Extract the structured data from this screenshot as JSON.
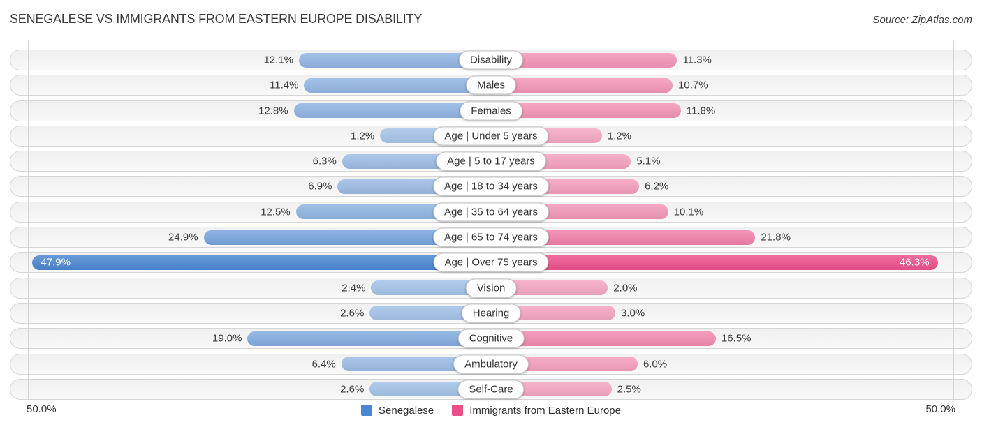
{
  "title": "SENEGALESE VS IMMIGRANTS FROM EASTERN EUROPE DISABILITY",
  "source": "Source: ZipAtlas.com",
  "axis": {
    "left_label": "50.0%",
    "right_label": "50.0%"
  },
  "legend": {
    "items": [
      {
        "label": "Senegalese",
        "color": "#4A86D2"
      },
      {
        "label": "Immigrants from Eastern Europe",
        "color": "#EC4D88"
      }
    ]
  },
  "colors": {
    "senegalese_base": "#4A86D2",
    "immigrants_base": "#EC4D88",
    "track_background": "#f3f3f3",
    "track_border": "#d5d5d5",
    "gridline": "#d4d4d4",
    "value_label": "#3c3c3c",
    "inside_value_label": "#ffffff"
  },
  "chart_data": {
    "type": "bar",
    "subtype": "diverging-horizontal-tornado",
    "title": "SENEGALESE VS IMMIGRANTS FROM EASTERN EUROPE DISABILITY",
    "unit": "%",
    "axis_max": 50.0,
    "xlim": [
      -50.0,
      50.0
    ],
    "grid": "50% marks only",
    "legend_position": "bottom-center",
    "value_label_style": "outside ends, inside bar when value exceeds ~40%",
    "categories": [
      "Disability",
      "Males",
      "Females",
      "Age | Under 5 years",
      "Age | 5 to 17 years",
      "Age | 18 to 34 years",
      "Age | 35 to 64 years",
      "Age | 65 to 74 years",
      "Age | Over 75 years",
      "Vision",
      "Hearing",
      "Cognitive",
      "Ambulatory",
      "Self-Care"
    ],
    "series": [
      {
        "name": "Senegalese",
        "side": "left",
        "color": "#4A86D2",
        "values": [
          12.1,
          11.4,
          12.8,
          1.2,
          6.3,
          6.9,
          12.5,
          24.9,
          47.9,
          2.4,
          2.6,
          19.0,
          6.4,
          2.6
        ]
      },
      {
        "name": "Immigrants from Eastern Europe",
        "side": "right",
        "color": "#EC4D88",
        "values": [
          11.3,
          10.7,
          11.8,
          1.2,
          5.1,
          6.2,
          10.1,
          21.8,
          46.3,
          2.0,
          3.0,
          16.5,
          6.0,
          2.5
        ]
      }
    ]
  }
}
